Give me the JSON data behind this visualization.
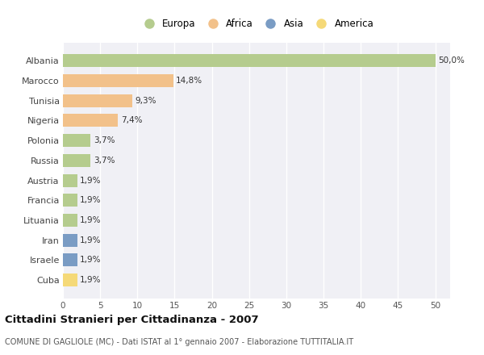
{
  "categories": [
    "Albania",
    "Marocco",
    "Tunisia",
    "Nigeria",
    "Polonia",
    "Russia",
    "Austria",
    "Francia",
    "Lituania",
    "Iran",
    "Israele",
    "Cuba"
  ],
  "values": [
    50.0,
    14.8,
    9.3,
    7.4,
    3.7,
    3.7,
    1.9,
    1.9,
    1.9,
    1.9,
    1.9,
    1.9
  ],
  "labels": [
    "50,0%",
    "14,8%",
    "9,3%",
    "7,4%",
    "3,7%",
    "3,7%",
    "1,9%",
    "1,9%",
    "1,9%",
    "1,9%",
    "1,9%",
    "1,9%"
  ],
  "bar_colors": [
    "#b5cc8e",
    "#f2c18a",
    "#f2c18a",
    "#f2c18a",
    "#b5cc8e",
    "#b5cc8e",
    "#b5cc8e",
    "#b5cc8e",
    "#b5cc8e",
    "#7a9cc4",
    "#7a9cc4",
    "#f5d978"
  ],
  "legend_labels": [
    "Europa",
    "Africa",
    "Asia",
    "America"
  ],
  "legend_colors": [
    "#b5cc8e",
    "#f2c18a",
    "#7a9cc4",
    "#f5d978"
  ],
  "xlim": [
    0,
    52
  ],
  "xticks": [
    0,
    5,
    10,
    15,
    20,
    25,
    30,
    35,
    40,
    45,
    50
  ],
  "title": "Cittadini Stranieri per Cittadinanza - 2007",
  "subtitle": "COMUNE DI GAGLIOLE (MC) - Dati ISTAT al 1° gennaio 2007 - Elaborazione TUTTITALIA.IT",
  "background_color": "#ffffff",
  "plot_bg_color": "#f0f0f5",
  "grid_color": "#ffffff",
  "bar_height": 0.65,
  "label_fontsize": 7.5,
  "ytick_fontsize": 8,
  "xtick_fontsize": 7.5
}
